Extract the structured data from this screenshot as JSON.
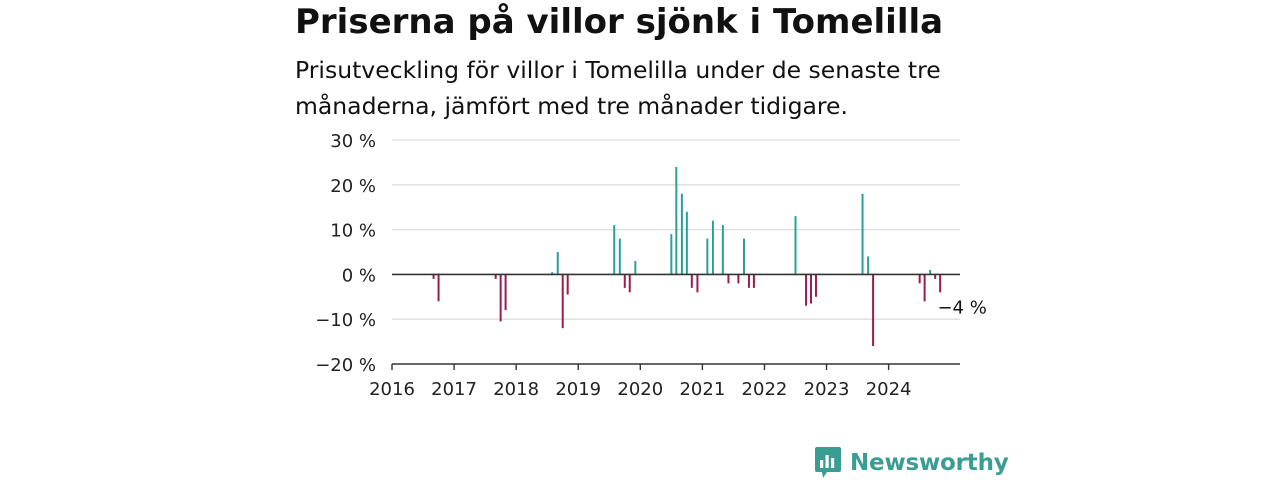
{
  "title": "Priserna på villor sjönk i Tomelilla",
  "subtitle": "Prisutveckling för villor i Tomelilla under de senaste tre månaderna, jämfört med tre månader tidigare.",
  "brand": {
    "name": "Newsworthy",
    "color": "#3a9d94"
  },
  "colors": {
    "positive": "#2aa198",
    "negative": "#9b1c4e",
    "grid": "#dddddd",
    "axis": "#333333"
  },
  "chart_data": {
    "type": "bar",
    "xlabel": "",
    "ylabel": "",
    "ylim": [
      -20,
      30
    ],
    "xlim": [
      2016,
      2025.15
    ],
    "yticks": [
      {
        "value": 30,
        "label": "30 %"
      },
      {
        "value": 20,
        "label": "20 %"
      },
      {
        "value": 10,
        "label": "10 %"
      },
      {
        "value": 0,
        "label": "0 %"
      },
      {
        "value": -10,
        "label": "−10 %"
      },
      {
        "value": -20,
        "label": "−20 %"
      }
    ],
    "xticks": [
      {
        "value": 2016,
        "label": "2016"
      },
      {
        "value": 2017,
        "label": "2017"
      },
      {
        "value": 2018,
        "label": "2018"
      },
      {
        "value": 2019,
        "label": "2019"
      },
      {
        "value": 2020,
        "label": "2020"
      },
      {
        "value": 2021,
        "label": "2021"
      },
      {
        "value": 2022,
        "label": "2022"
      },
      {
        "value": 2023,
        "label": "2023"
      },
      {
        "value": 2024,
        "label": "2024"
      }
    ],
    "grid": true,
    "points": [
      {
        "x": 2016.67,
        "y": -1
      },
      {
        "x": 2016.75,
        "y": -6
      },
      {
        "x": 2017.67,
        "y": -1
      },
      {
        "x": 2017.75,
        "y": -10.5
      },
      {
        "x": 2017.83,
        "y": -8
      },
      {
        "x": 2018.58,
        "y": 0.5
      },
      {
        "x": 2018.67,
        "y": 5
      },
      {
        "x": 2018.75,
        "y": -12
      },
      {
        "x": 2018.83,
        "y": -4.5
      },
      {
        "x": 2019.58,
        "y": 11
      },
      {
        "x": 2019.67,
        "y": 8
      },
      {
        "x": 2019.75,
        "y": -3
      },
      {
        "x": 2019.83,
        "y": -4
      },
      {
        "x": 2019.92,
        "y": 3
      },
      {
        "x": 2020.5,
        "y": 9
      },
      {
        "x": 2020.58,
        "y": 24
      },
      {
        "x": 2020.67,
        "y": 18
      },
      {
        "x": 2020.75,
        "y": 14
      },
      {
        "x": 2020.83,
        "y": -3
      },
      {
        "x": 2020.92,
        "y": -4
      },
      {
        "x": 2021.08,
        "y": 8
      },
      {
        "x": 2021.17,
        "y": 12
      },
      {
        "x": 2021.33,
        "y": 11
      },
      {
        "x": 2021.42,
        "y": -2
      },
      {
        "x": 2021.58,
        "y": -2
      },
      {
        "x": 2021.67,
        "y": 8
      },
      {
        "x": 2021.75,
        "y": -3
      },
      {
        "x": 2021.83,
        "y": -3
      },
      {
        "x": 2022.5,
        "y": 13
      },
      {
        "x": 2022.67,
        "y": -7
      },
      {
        "x": 2022.75,
        "y": -6.5
      },
      {
        "x": 2022.83,
        "y": -5
      },
      {
        "x": 2023.58,
        "y": 18
      },
      {
        "x": 2023.67,
        "y": 4
      },
      {
        "x": 2023.75,
        "y": -16
      },
      {
        "x": 2024.5,
        "y": -2
      },
      {
        "x": 2024.58,
        "y": -6
      },
      {
        "x": 2024.67,
        "y": 1
      },
      {
        "x": 2024.75,
        "y": -1
      },
      {
        "x": 2024.83,
        "y": -4
      }
    ],
    "annotations": [
      {
        "x": 2024.83,
        "y": -4,
        "label": "−4 %"
      }
    ]
  }
}
